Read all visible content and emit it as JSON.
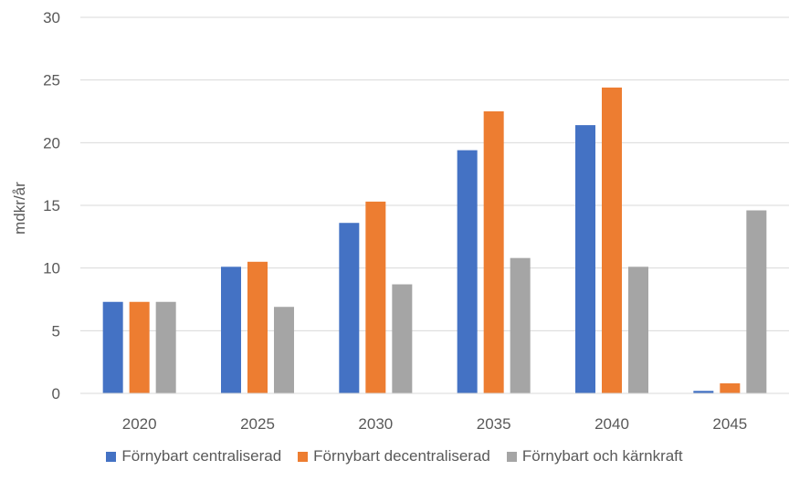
{
  "chart_data": {
    "type": "bar",
    "title": "",
    "xlabel": "",
    "ylabel": "mdkr/år",
    "ylim": [
      0,
      30
    ],
    "yticks": [
      0,
      5,
      10,
      15,
      20,
      25,
      30
    ],
    "grid": true,
    "legend_position": "bottom",
    "categories": [
      "2020",
      "2025",
      "2030",
      "2035",
      "2040",
      "2045"
    ],
    "series": [
      {
        "name": "Förnybart centraliserad",
        "color": "#4472C4",
        "values": [
          7.3,
          10.1,
          13.6,
          19.4,
          21.4,
          0.2
        ]
      },
      {
        "name": "Förnybart decentraliserad",
        "color": "#ED7D31",
        "values": [
          7.3,
          10.5,
          15.3,
          22.5,
          24.4,
          0.8
        ]
      },
      {
        "name": "Förnybart och kärnkraft",
        "color": "#A5A5A5",
        "values": [
          7.3,
          6.9,
          8.7,
          10.8,
          10.1,
          14.6
        ]
      }
    ]
  }
}
